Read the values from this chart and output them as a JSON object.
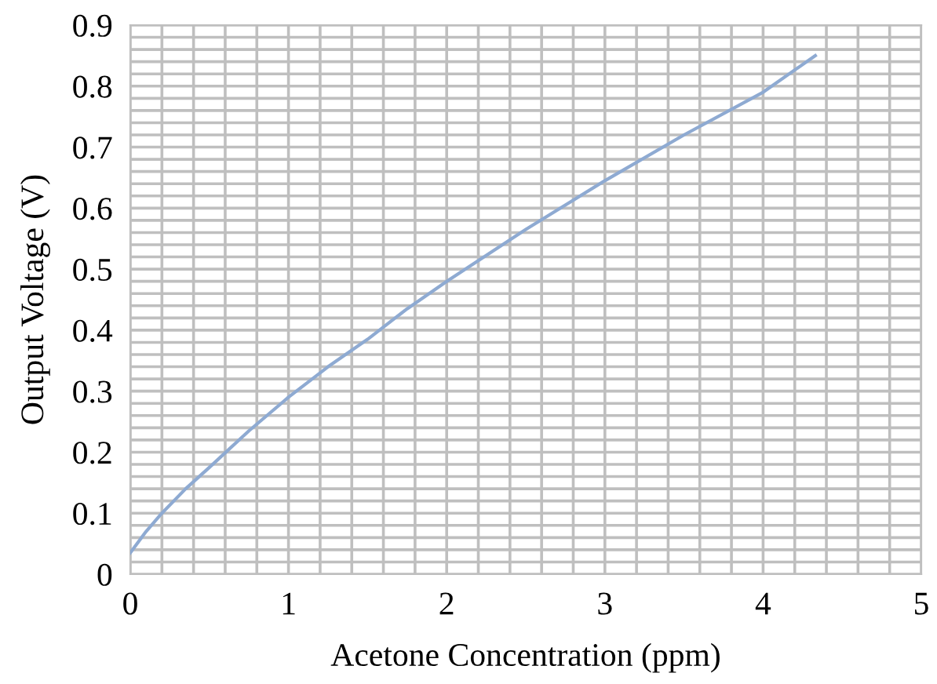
{
  "chart_data": {
    "type": "line",
    "xlabel": "Acetone Concentration (ppm)",
    "ylabel": "Output Voltage (V)",
    "series": [
      {
        "color": "#8eaad2",
        "x": [
          0,
          0.1,
          0.2,
          0.35,
          0.5,
          0.75,
          1,
          1.25,
          1.5,
          1.75,
          2,
          2.5,
          3,
          3.5,
          4,
          4.33
        ],
        "values": [
          0.035,
          0.07,
          0.1,
          0.14,
          0.175,
          0.235,
          0.29,
          0.34,
          0.385,
          0.435,
          0.48,
          0.565,
          0.645,
          0.72,
          0.79,
          0.85
        ]
      }
    ],
    "xlim": [
      0,
      5
    ],
    "xticks": [
      0,
      1,
      2,
      3,
      4,
      5
    ],
    "ylim": [
      0,
      0.9
    ],
    "yticks": [
      0,
      0.1,
      0.2,
      0.3,
      0.4,
      0.5,
      0.6,
      0.7,
      0.8,
      0.9
    ],
    "grid": true,
    "marker": "none",
    "line_style": "solid"
  }
}
